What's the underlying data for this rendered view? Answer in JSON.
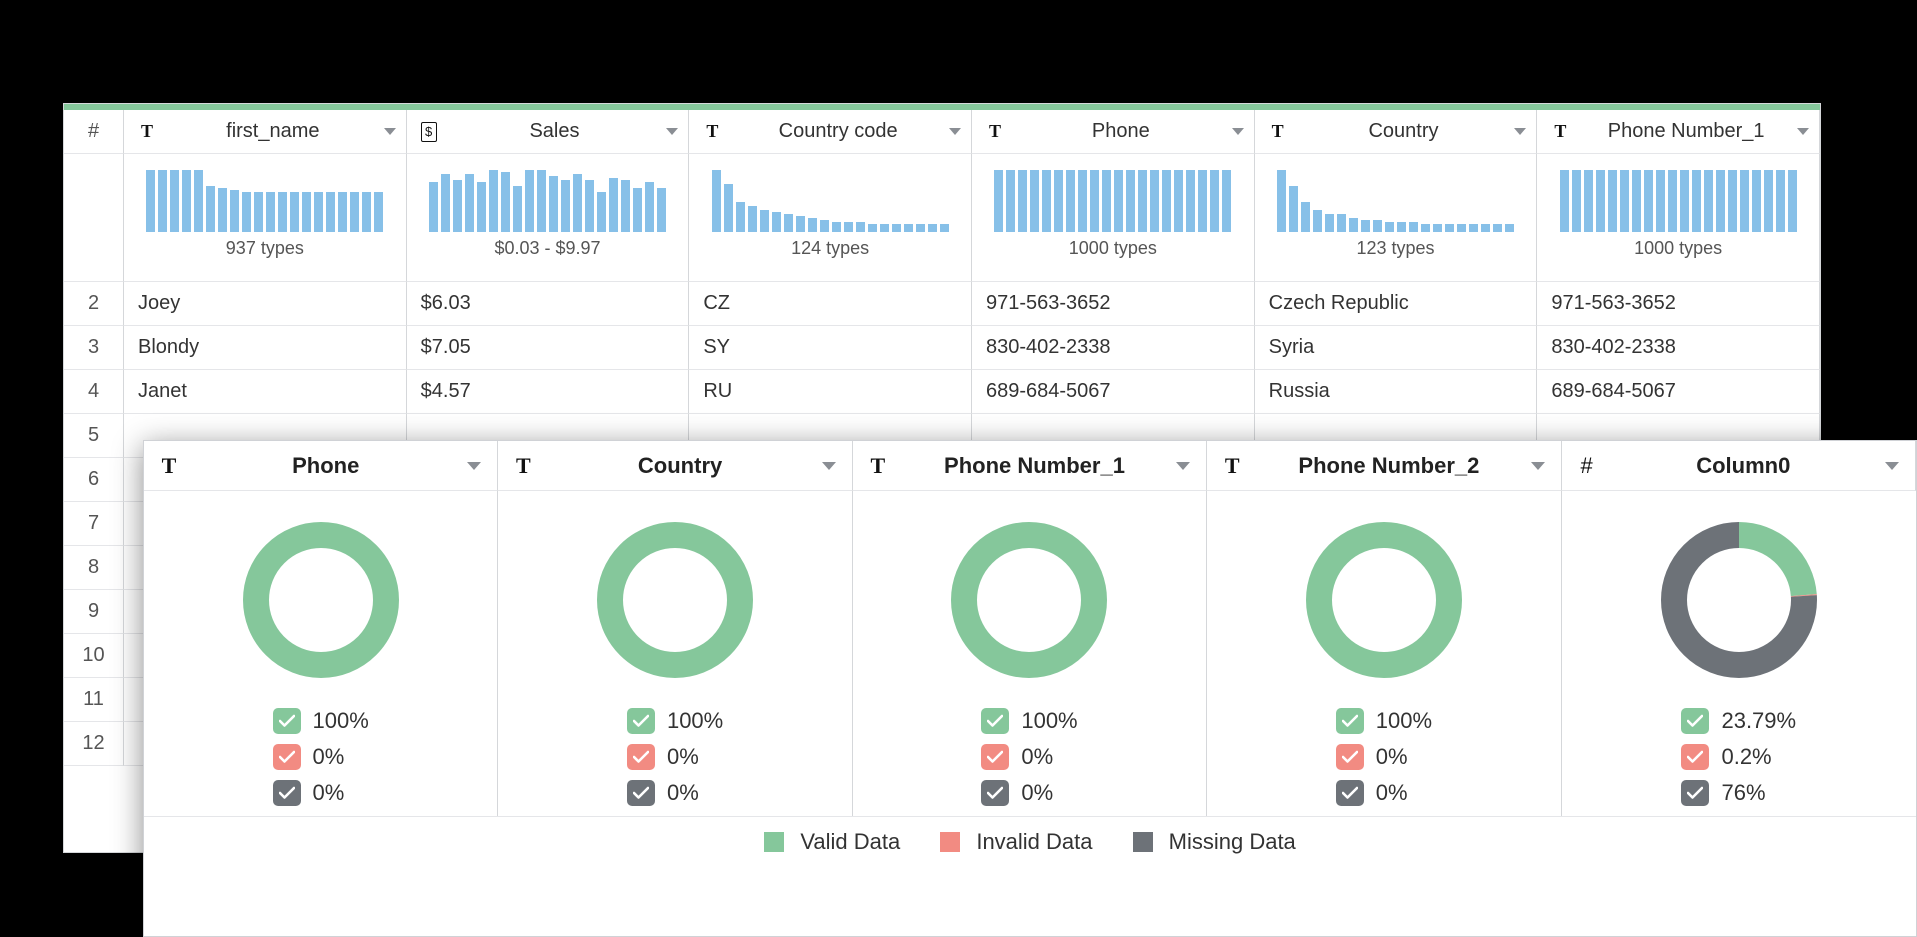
{
  "colors": {
    "valid": "#85c79b",
    "invalid": "#f28b82",
    "missing": "#6d7278",
    "bar": "#87c0e8",
    "border": "#d5d7da",
    "text": "#333333",
    "bg": "#ffffff"
  },
  "back_table": {
    "rownum_header": "#",
    "columns": [
      {
        "type_icon": "text",
        "label": "first_name",
        "histogram": [
          62,
          62,
          62,
          62,
          62,
          46,
          44,
          42,
          40,
          40,
          40,
          40,
          40,
          40,
          40,
          40,
          40,
          40,
          40,
          40
        ],
        "summary": "937 types"
      },
      {
        "type_icon": "currency",
        "label": "Sales",
        "histogram": [
          50,
          58,
          52,
          58,
          50,
          62,
          60,
          46,
          62,
          62,
          56,
          52,
          58,
          52,
          40,
          54,
          52,
          44,
          50,
          44
        ],
        "summary": "$0.03 - $9.97"
      },
      {
        "type_icon": "text",
        "label": "Country code",
        "histogram": [
          62,
          48,
          30,
          26,
          22,
          20,
          18,
          16,
          14,
          12,
          10,
          10,
          10,
          8,
          8,
          8,
          8,
          8,
          8,
          8
        ],
        "summary": "124 types"
      },
      {
        "type_icon": "text",
        "label": "Phone",
        "histogram": [
          62,
          62,
          62,
          62,
          62,
          62,
          62,
          62,
          62,
          62,
          62,
          62,
          62,
          62,
          62,
          62,
          62,
          62,
          62,
          62
        ],
        "summary": "1000 types"
      },
      {
        "type_icon": "text",
        "label": "Country",
        "histogram": [
          62,
          46,
          30,
          22,
          18,
          18,
          14,
          12,
          12,
          10,
          10,
          10,
          8,
          8,
          8,
          8,
          8,
          8,
          8,
          8
        ],
        "summary": "123 types"
      },
      {
        "type_icon": "text",
        "label": "Phone Number_1",
        "histogram": [
          62,
          62,
          62,
          62,
          62,
          62,
          62,
          62,
          62,
          62,
          62,
          62,
          62,
          62,
          62,
          62,
          62,
          62,
          62,
          62
        ],
        "summary": "1000 types"
      }
    ],
    "rows": [
      {
        "n": "2",
        "cells": [
          "Joey",
          "$6.03",
          "CZ",
          "971-563-3652",
          "Czech Republic",
          "971-563-3652"
        ]
      },
      {
        "n": "3",
        "cells": [
          "Blondy",
          "$7.05",
          "SY",
          "830-402-2338",
          "Syria",
          "830-402-2338"
        ]
      },
      {
        "n": "4",
        "cells": [
          "Janet",
          "$4.57",
          "RU",
          "689-684-5067",
          "Russia",
          "689-684-5067"
        ]
      },
      {
        "n": "5",
        "cells": [
          "",
          "",
          "",
          "",
          "",
          ""
        ]
      },
      {
        "n": "6",
        "cells": [
          "",
          "",
          "",
          "",
          "",
          ""
        ]
      },
      {
        "n": "7",
        "cells": [
          "",
          "",
          "",
          "",
          "",
          ""
        ]
      },
      {
        "n": "8",
        "cells": [
          "",
          "",
          "",
          "",
          "",
          ""
        ]
      },
      {
        "n": "9",
        "cells": [
          "",
          "",
          "",
          "",
          "",
          ""
        ]
      },
      {
        "n": "10",
        "cells": [
          "",
          "",
          "",
          "",
          "",
          ""
        ]
      },
      {
        "n": "11",
        "cells": [
          "",
          "",
          "",
          "",
          "",
          ""
        ]
      },
      {
        "n": "12",
        "cells": [
          "",
          "",
          "",
          "",
          "",
          ""
        ]
      }
    ]
  },
  "front_panel": {
    "columns": [
      {
        "type_icon": "text",
        "label": "Phone",
        "donut": {
          "valid": 100,
          "invalid": 0,
          "missing": 0
        },
        "stats": {
          "valid": "100%",
          "invalid": "0%",
          "missing": "0%"
        }
      },
      {
        "type_icon": "text",
        "label": "Country",
        "donut": {
          "valid": 100,
          "invalid": 0,
          "missing": 0
        },
        "stats": {
          "valid": "100%",
          "invalid": "0%",
          "missing": "0%"
        }
      },
      {
        "type_icon": "text",
        "label": "Phone Number_1",
        "donut": {
          "valid": 100,
          "invalid": 0,
          "missing": 0
        },
        "stats": {
          "valid": "100%",
          "invalid": "0%",
          "missing": "0%"
        }
      },
      {
        "type_icon": "text",
        "label": "Phone Number_2",
        "donut": {
          "valid": 100,
          "invalid": 0,
          "missing": 0
        },
        "stats": {
          "valid": "100%",
          "invalid": "0%",
          "missing": "0%"
        }
      },
      {
        "type_icon": "hash",
        "label": "Column0",
        "donut": {
          "valid": 23.79,
          "invalid": 0.2,
          "missing": 76
        },
        "stats": {
          "valid": "23.79%",
          "invalid": "0.2%",
          "missing": "76%"
        }
      }
    ],
    "legend": {
      "valid": "Valid Data",
      "invalid": "Invalid Data",
      "missing": "Missing Data"
    },
    "donut_style": {
      "outer_r": 78,
      "thickness": 26,
      "start_angle_deg": -90
    }
  }
}
